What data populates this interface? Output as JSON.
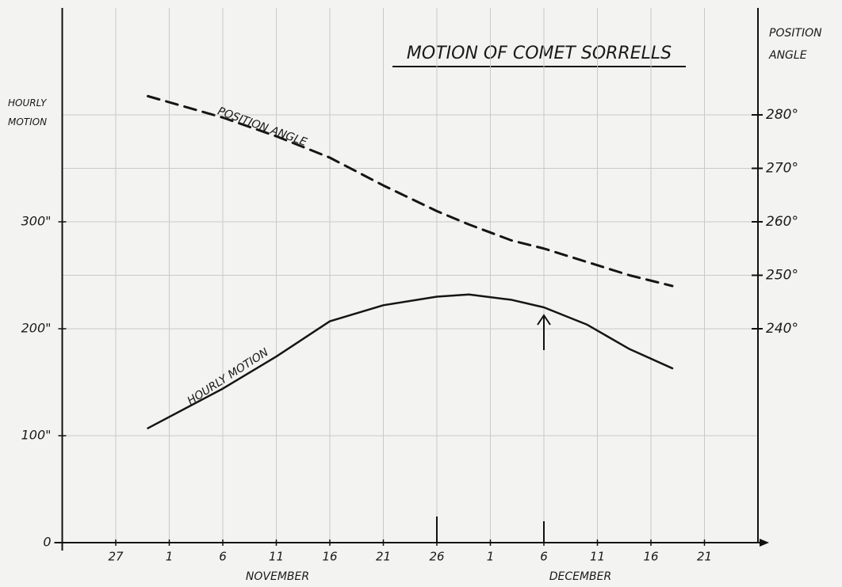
{
  "chart_data": {
    "type": "line",
    "title": "MOTION OF COMET SORRELLS",
    "y_label": "HOURLY MOTION",
    "y2_label": "POSITION ANGLE",
    "annotations": [
      "POSITION ANGLE",
      "HOURLY MOTION",
      "NOVEMBER",
      "DECEMBER"
    ],
    "x": [
      3,
      10,
      15,
      20,
      25,
      30,
      33,
      37,
      40,
      44,
      48,
      52
    ],
    "xlim": [
      -5,
      60
    ],
    "xticks": [
      {
        "value": 0,
        "label": "27"
      },
      {
        "value": 5,
        "label": "1"
      },
      {
        "value": 10,
        "label": "6"
      },
      {
        "value": 15,
        "label": "11"
      },
      {
        "value": 20,
        "label": "16"
      },
      {
        "value": 25,
        "label": "21"
      },
      {
        "value": 30,
        "label": "26"
      },
      {
        "value": 35,
        "label": "1"
      },
      {
        "value": 40,
        "label": "6"
      },
      {
        "value": 45,
        "label": "11"
      },
      {
        "value": 50,
        "label": "16"
      },
      {
        "value": 55,
        "label": "21"
      }
    ],
    "ylim": [
      0,
      500
    ],
    "yticks": [
      0,
      {
        "value": 100,
        "label": "100\""
      },
      {
        "value": 200,
        "label": "200\""
      },
      {
        "value": 300,
        "label": "300\""
      }
    ],
    "y2lim": [
      200,
      300
    ],
    "y2ticks": [
      {
        "value": 240,
        "label": "240°"
      },
      {
        "value": 250,
        "label": "250°"
      },
      {
        "value": 260,
        "label": "260°"
      },
      {
        "value": 270,
        "label": "270°"
      },
      {
        "value": 280,
        "label": "280°"
      }
    ],
    "grid": true,
    "series": [
      {
        "name": "HOURLY MOTION",
        "color": "#151515",
        "dashed": false,
        "values": [
          107,
          144,
          174,
          207,
          222,
          230,
          232,
          227,
          220,
          204,
          181,
          163
        ]
      },
      {
        "name": "POSITION ANGLE",
        "color": "#151515",
        "dashed": true,
        "axis": "y2",
        "values": [
          283.5,
          279.5,
          276,
          272,
          266.8,
          262,
          259.5,
          256.5,
          255,
          252.5,
          250,
          248
        ]
      }
    ]
  }
}
